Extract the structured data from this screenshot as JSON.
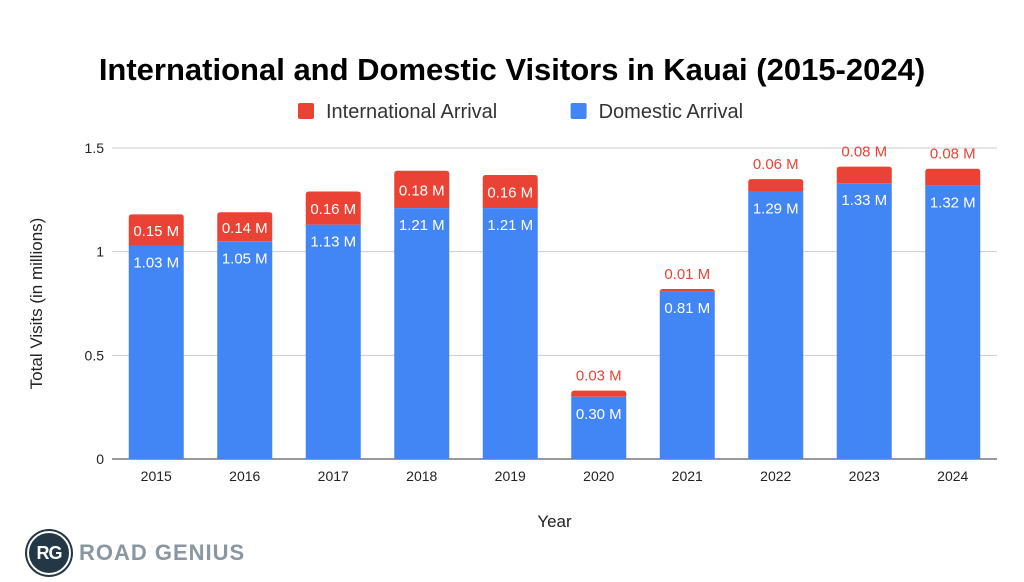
{
  "chart_data": {
    "type": "bar",
    "stacked": true,
    "title": "International and Domestic Visitors in Kauai (2015-2024)",
    "xlabel": "Year",
    "ylabel": "Total Visits (in millions)",
    "ylim": [
      0,
      1.5
    ],
    "yticks": [
      "0",
      "0.5",
      "1",
      "1.5"
    ],
    "ytick_values": [
      0,
      0.5,
      1,
      1.5
    ],
    "grid": true,
    "legend_position": "top",
    "categories": [
      "2015",
      "2016",
      "2017",
      "2018",
      "2019",
      "2020",
      "2021",
      "2022",
      "2023",
      "2024"
    ],
    "series": [
      {
        "name": "Domestic Arrival",
        "color": "#4285f4",
        "values": [
          1.03,
          1.05,
          1.13,
          1.21,
          1.21,
          0.3,
          0.81,
          1.29,
          1.33,
          1.32
        ],
        "labels": [
          "1.03 M",
          "1.05 M",
          "1.13 M",
          "1.21 M",
          "1.21 M",
          "0.30 M",
          "0.81 M",
          "1.29 M",
          "1.33 M",
          "1.32 M"
        ]
      },
      {
        "name": "International Arrival",
        "color": "#ea4335",
        "values": [
          0.15,
          0.14,
          0.16,
          0.18,
          0.16,
          0.03,
          0.01,
          0.06,
          0.08,
          0.08
        ],
        "labels": [
          "0.15 M",
          "0.14 M",
          "0.16 M",
          "0.18 M",
          "0.16 M",
          "0.03 M",
          "0.01 M",
          "0.06 M",
          "0.08 M",
          "0.08 M"
        ]
      }
    ],
    "legend_order": [
      "International Arrival",
      "Domestic Arrival"
    ]
  },
  "branding": {
    "logo_initials": "RG",
    "logo_text": "ROAD GENIUS"
  }
}
